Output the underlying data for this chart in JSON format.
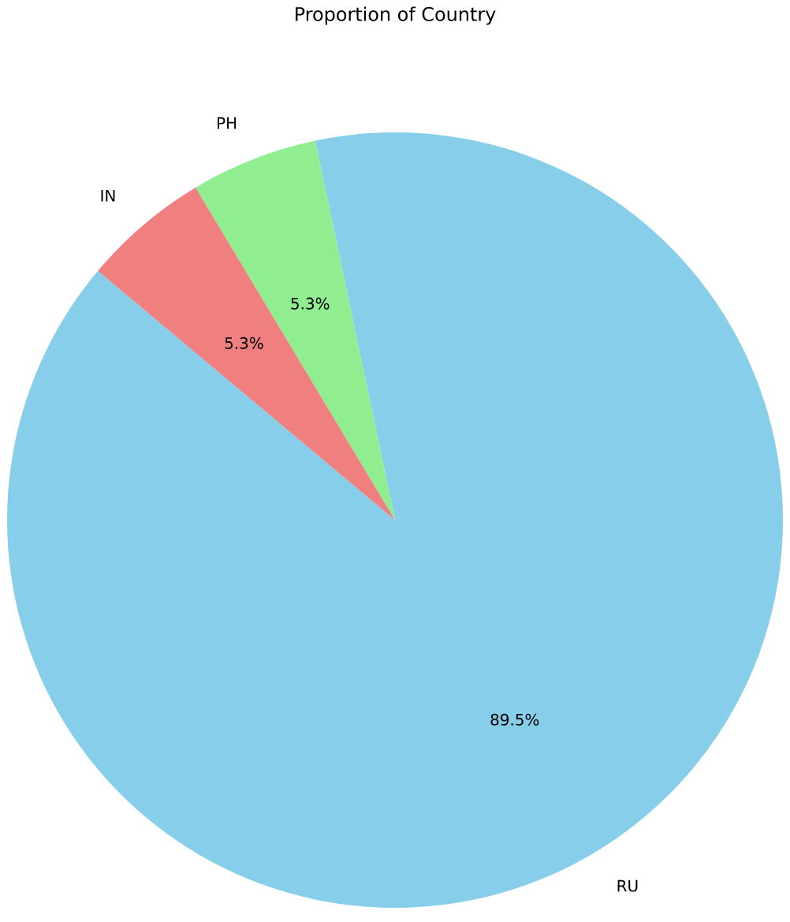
{
  "chart_data": {
    "type": "pie",
    "title": "Proportion of Country",
    "categories": [
      "RU",
      "PH",
      "IN"
    ],
    "values": [
      89.5,
      5.3,
      5.3
    ],
    "colors": [
      "#87ceeb",
      "#90ee90",
      "#f08080"
    ],
    "value_labels": [
      "89.5%",
      "5.3%",
      "5.3%"
    ]
  }
}
